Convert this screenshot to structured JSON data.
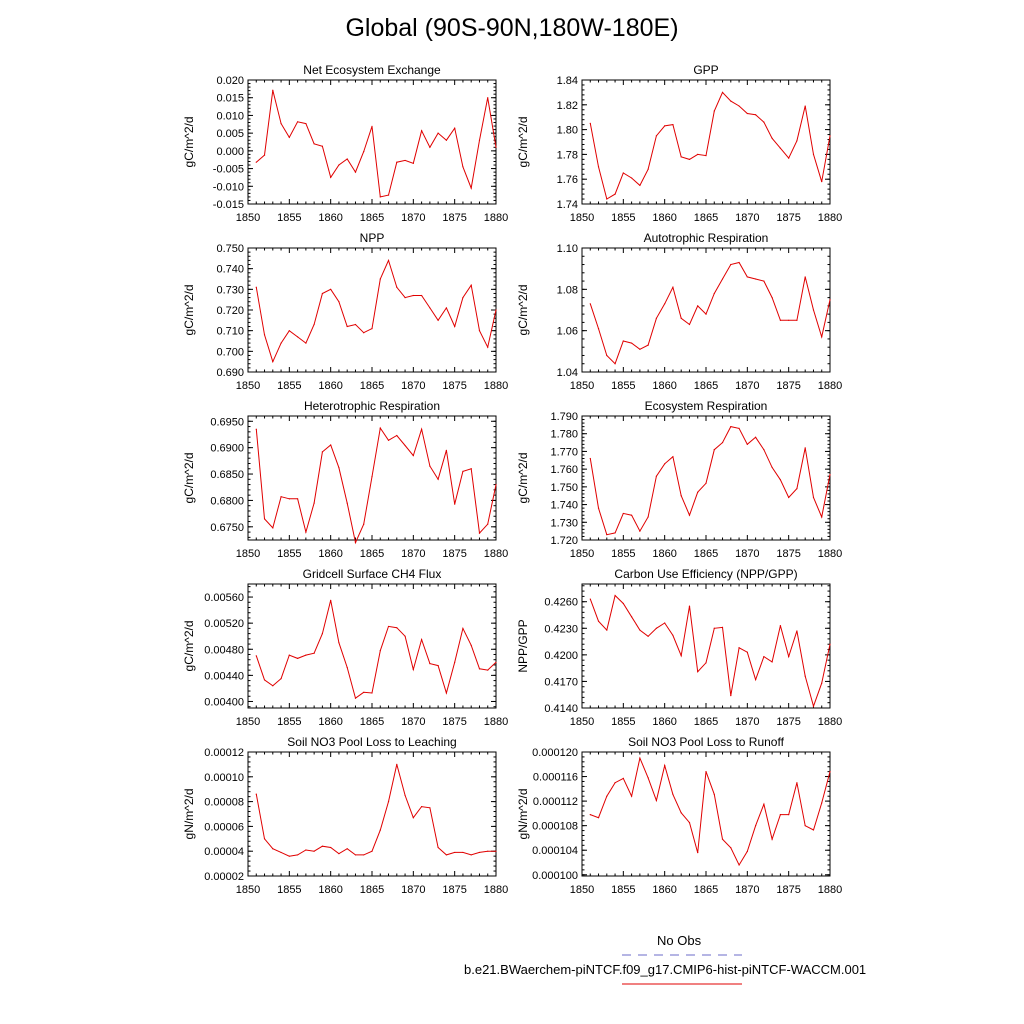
{
  "title": "Global (90S-90N,180W-180E)",
  "legend": {
    "obs_label": "No Obs",
    "case_label": "b.e21.BWaerchem-piNTCF.f09_g17.CMIP6-hist-piNTCF-WACCM.001",
    "obs_color": "#6b6bc9",
    "case_color": "#e00000"
  },
  "chart_data": [
    {
      "type": "line",
      "title": "Net Ecosystem Exchange",
      "ylabel": "gC/m^2/d",
      "xlim": [
        1850,
        1880
      ],
      "ylim": [
        -0.015,
        0.02
      ],
      "xticks": [
        1850,
        1855,
        1860,
        1865,
        1870,
        1875,
        1880
      ],
      "yticks": [
        "-0.015",
        "-0.010",
        "-0.005",
        "0.000",
        "0.005",
        "0.010",
        "0.015",
        "0.020"
      ],
      "line_color": "#e00000",
      "x": [
        1851,
        1852,
        1853,
        1854,
        1855,
        1856,
        1857,
        1858,
        1859,
        1860,
        1861,
        1862,
        1863,
        1864,
        1865,
        1866,
        1867,
        1868,
        1869,
        1870,
        1871,
        1872,
        1873,
        1874,
        1875,
        1876,
        1877,
        1878,
        1879,
        1880
      ],
      "y": [
        -0.0032,
        -0.0012,
        0.0171,
        0.0077,
        0.0038,
        0.0082,
        0.0077,
        0.002,
        0.0013,
        -0.0075,
        -0.004,
        -0.0023,
        -0.006,
        -0.0002,
        0.0069,
        -0.013,
        -0.0125,
        -0.0032,
        -0.0027,
        -0.0035,
        0.0057,
        0.001,
        0.005,
        0.003,
        0.0064,
        -0.0045,
        -0.0105,
        0.003,
        0.015,
        0.001
      ]
    },
    {
      "type": "line",
      "title": "GPP",
      "ylabel": "gC/m^2/d",
      "xlim": [
        1850,
        1880
      ],
      "ylim": [
        1.74,
        1.84
      ],
      "xticks": [
        1850,
        1855,
        1860,
        1865,
        1870,
        1875,
        1880
      ],
      "yticks": [
        "1.74",
        "1.76",
        "1.78",
        "1.80",
        "1.82",
        "1.84"
      ],
      "line_color": "#e00000",
      "x": [
        1851,
        1852,
        1853,
        1854,
        1855,
        1856,
        1857,
        1858,
        1859,
        1860,
        1861,
        1862,
        1863,
        1864,
        1865,
        1866,
        1867,
        1868,
        1869,
        1870,
        1871,
        1872,
        1873,
        1874,
        1875,
        1876,
        1877,
        1878,
        1879,
        1880
      ],
      "y": [
        1.805,
        1.77,
        1.744,
        1.748,
        1.765,
        1.761,
        1.755,
        1.768,
        1.795,
        1.803,
        1.804,
        1.778,
        1.776,
        1.78,
        1.779,
        1.815,
        1.83,
        1.823,
        1.819,
        1.813,
        1.812,
        1.806,
        1.793,
        1.785,
        1.777,
        1.791,
        1.819,
        1.78,
        1.758,
        1.795
      ]
    },
    {
      "type": "line",
      "title": "NPP",
      "ylabel": "gC/m^2/d",
      "xlim": [
        1850,
        1880
      ],
      "ylim": [
        0.69,
        0.75
      ],
      "xticks": [
        1850,
        1855,
        1860,
        1865,
        1870,
        1875,
        1880
      ],
      "yticks": [
        "0.690",
        "0.700",
        "0.710",
        "0.720",
        "0.730",
        "0.740",
        "0.750"
      ],
      "line_color": "#e00000",
      "x": [
        1851,
        1852,
        1853,
        1854,
        1855,
        1856,
        1857,
        1858,
        1859,
        1860,
        1861,
        1862,
        1863,
        1864,
        1865,
        1866,
        1867,
        1868,
        1869,
        1870,
        1871,
        1872,
        1873,
        1874,
        1875,
        1876,
        1877,
        1878,
        1879,
        1880
      ],
      "y": [
        0.731,
        0.708,
        0.695,
        0.704,
        0.71,
        0.707,
        0.704,
        0.713,
        0.728,
        0.73,
        0.724,
        0.712,
        0.713,
        0.709,
        0.711,
        0.735,
        0.744,
        0.731,
        0.726,
        0.727,
        0.727,
        0.721,
        0.715,
        0.721,
        0.712,
        0.726,
        0.732,
        0.71,
        0.702,
        0.72
      ]
    },
    {
      "type": "line",
      "title": "Autotrophic Respiration",
      "ylabel": "gC/m^2/d",
      "xlim": [
        1850,
        1880
      ],
      "ylim": [
        1.04,
        1.1
      ],
      "xticks": [
        1850,
        1855,
        1860,
        1865,
        1870,
        1875,
        1880
      ],
      "yticks": [
        "1.04",
        "1.06",
        "1.08",
        "1.10"
      ],
      "line_color": "#e00000",
      "x": [
        1851,
        1852,
        1853,
        1854,
        1855,
        1856,
        1857,
        1858,
        1859,
        1860,
        1861,
        1862,
        1863,
        1864,
        1865,
        1866,
        1867,
        1868,
        1869,
        1870,
        1871,
        1872,
        1873,
        1874,
        1875,
        1876,
        1877,
        1878,
        1879,
        1880
      ],
      "y": [
        1.073,
        1.061,
        1.048,
        1.044,
        1.055,
        1.054,
        1.051,
        1.053,
        1.066,
        1.073,
        1.081,
        1.066,
        1.063,
        1.072,
        1.068,
        1.078,
        1.085,
        1.092,
        1.093,
        1.086,
        1.085,
        1.084,
        1.076,
        1.065,
        1.065,
        1.065,
        1.086,
        1.07,
        1.057,
        1.075
      ]
    },
    {
      "type": "line",
      "title": "Heterotrophic Respiration",
      "ylabel": "gC/m^2/d",
      "xlim": [
        1850,
        1880
      ],
      "ylim": [
        0.6725,
        0.696
      ],
      "xticks": [
        1850,
        1855,
        1860,
        1865,
        1870,
        1875,
        1880
      ],
      "yticks": [
        "0.6750",
        "0.6800",
        "0.6850",
        "0.6900",
        "0.6950"
      ],
      "line_color": "#e00000",
      "x": [
        1851,
        1852,
        1853,
        1854,
        1855,
        1856,
        1857,
        1858,
        1859,
        1860,
        1861,
        1862,
        1863,
        1864,
        1865,
        1866,
        1867,
        1868,
        1869,
        1870,
        1871,
        1872,
        1873,
        1874,
        1875,
        1876,
        1877,
        1878,
        1879,
        1880
      ],
      "y": [
        0.6935,
        0.6765,
        0.6748,
        0.6807,
        0.6803,
        0.6803,
        0.674,
        0.6795,
        0.6892,
        0.6905,
        0.6862,
        0.6795,
        0.672,
        0.6755,
        0.6845,
        0.6937,
        0.6914,
        0.6923,
        0.6904,
        0.6885,
        0.6935,
        0.6865,
        0.684,
        0.6895,
        0.6793,
        0.6855,
        0.686,
        0.6738,
        0.6755,
        0.683
      ]
    },
    {
      "type": "line",
      "title": "Ecosystem Respiration",
      "ylabel": "gC/m^2/d",
      "xlim": [
        1850,
        1880
      ],
      "ylim": [
        1.72,
        1.79
      ],
      "xticks": [
        1850,
        1855,
        1860,
        1865,
        1870,
        1875,
        1880
      ],
      "yticks": [
        "1.720",
        "1.730",
        "1.740",
        "1.750",
        "1.760",
        "1.770",
        "1.780",
        "1.790"
      ],
      "line_color": "#e00000",
      "x": [
        1851,
        1852,
        1853,
        1854,
        1855,
        1856,
        1857,
        1858,
        1859,
        1860,
        1861,
        1862,
        1863,
        1864,
        1865,
        1866,
        1867,
        1868,
        1869,
        1870,
        1871,
        1872,
        1873,
        1874,
        1875,
        1876,
        1877,
        1878,
        1879,
        1880
      ],
      "y": [
        1.766,
        1.738,
        1.723,
        1.724,
        1.735,
        1.734,
        1.725,
        1.733,
        1.756,
        1.763,
        1.767,
        1.745,
        1.734,
        1.747,
        1.752,
        1.771,
        1.775,
        1.784,
        1.783,
        1.774,
        1.778,
        1.771,
        1.761,
        1.754,
        1.744,
        1.749,
        1.772,
        1.744,
        1.733,
        1.757
      ]
    },
    {
      "type": "line",
      "title": "Gridcell Surface CH4 Flux",
      "ylabel": "gC/m^2/d",
      "xlim": [
        1850,
        1880
      ],
      "ylim": [
        0.0039,
        0.0058
      ],
      "xticks": [
        1850,
        1855,
        1860,
        1865,
        1870,
        1875,
        1880
      ],
      "yticks": [
        "0.00400",
        "0.00440",
        "0.00480",
        "0.00520",
        "0.00560"
      ],
      "line_color": "#e00000",
      "x": [
        1851,
        1852,
        1853,
        1854,
        1855,
        1856,
        1857,
        1858,
        1859,
        1860,
        1861,
        1862,
        1863,
        1864,
        1865,
        1866,
        1867,
        1868,
        1869,
        1870,
        1871,
        1872,
        1873,
        1874,
        1875,
        1876,
        1877,
        1878,
        1879,
        1880
      ],
      "y": [
        0.0047,
        0.00433,
        0.00424,
        0.00435,
        0.00471,
        0.00466,
        0.00471,
        0.00474,
        0.00504,
        0.00555,
        0.0049,
        0.00452,
        0.00405,
        0.00414,
        0.00413,
        0.00478,
        0.00515,
        0.00513,
        0.005,
        0.00449,
        0.00495,
        0.00458,
        0.00455,
        0.00413,
        0.0046,
        0.00512,
        0.00486,
        0.0045,
        0.00448,
        0.0046
      ]
    },
    {
      "type": "line",
      "title": "Carbon Use Efficiency (NPP/GPP)",
      "ylabel": "NPP/GPP",
      "xlim": [
        1850,
        1880
      ],
      "ylim": [
        0.414,
        0.428
      ],
      "xticks": [
        1850,
        1855,
        1860,
        1865,
        1870,
        1875,
        1880
      ],
      "yticks": [
        "0.4140",
        "0.4170",
        "0.4200",
        "0.4230",
        "0.4260"
      ],
      "line_color": "#e00000",
      "x": [
        1851,
        1852,
        1853,
        1854,
        1855,
        1856,
        1857,
        1858,
        1859,
        1860,
        1861,
        1862,
        1863,
        1864,
        1865,
        1866,
        1867,
        1868,
        1869,
        1870,
        1871,
        1872,
        1873,
        1874,
        1875,
        1876,
        1877,
        1878,
        1879,
        1880
      ],
      "y": [
        0.4263,
        0.4238,
        0.4228,
        0.4267,
        0.4258,
        0.4243,
        0.4228,
        0.4221,
        0.423,
        0.4236,
        0.4222,
        0.4199,
        0.4255,
        0.4181,
        0.4191,
        0.423,
        0.4231,
        0.4154,
        0.4208,
        0.4203,
        0.4172,
        0.4198,
        0.4192,
        0.4233,
        0.4198,
        0.4227,
        0.4176,
        0.4142,
        0.4168,
        0.4212
      ]
    },
    {
      "type": "line",
      "title": "Soil NO3 Pool Loss to Leaching",
      "ylabel": "gN/m^2/d",
      "xlim": [
        1850,
        1880
      ],
      "ylim": [
        2e-05,
        0.00012
      ],
      "xticks": [
        1850,
        1855,
        1860,
        1865,
        1870,
        1875,
        1880
      ],
      "yticks": [
        "0.00002",
        "0.00004",
        "0.00006",
        "0.00008",
        "0.00010",
        "0.00012"
      ],
      "line_color": "#e00000",
      "x": [
        1851,
        1852,
        1853,
        1854,
        1855,
        1856,
        1857,
        1858,
        1859,
        1860,
        1861,
        1862,
        1863,
        1864,
        1865,
        1866,
        1867,
        1868,
        1869,
        1870,
        1871,
        1872,
        1873,
        1874,
        1875,
        1876,
        1877,
        1878,
        1879,
        1880
      ],
      "y": [
        8.6e-05,
        5e-05,
        4.2e-05,
        3.9e-05,
        3.6e-05,
        3.7e-05,
        4.1e-05,
        4e-05,
        4.4e-05,
        4.3e-05,
        3.8e-05,
        4.2e-05,
        3.7e-05,
        3.7e-05,
        4e-05,
        5.7e-05,
        8e-05,
        0.00011,
        8.5e-05,
        6.7e-05,
        7.6e-05,
        7.5e-05,
        4.3e-05,
        3.7e-05,
        3.9e-05,
        3.9e-05,
        3.7e-05,
        3.9e-05,
        4e-05,
        4e-05
      ]
    },
    {
      "type": "line",
      "title": "Soil NO3 Pool Loss to Runoff",
      "ylabel": "gN/m^2/d",
      "xlim": [
        1850,
        1880
      ],
      "ylim": [
        9.98e-05,
        0.00012
      ],
      "xticks": [
        1850,
        1855,
        1860,
        1865,
        1870,
        1875,
        1880
      ],
      "yticks": [
        "0.000100",
        "0.000104",
        "0.000108",
        "0.000112",
        "0.000116",
        "0.000120"
      ],
      "line_color": "#e00000",
      "x": [
        1851,
        1852,
        1853,
        1854,
        1855,
        1856,
        1857,
        1858,
        1859,
        1860,
        1861,
        1862,
        1863,
        1864,
        1865,
        1866,
        1867,
        1868,
        1869,
        1870,
        1871,
        1872,
        1873,
        1874,
        1875,
        1876,
        1877,
        1878,
        1879,
        1880
      ],
      "y": [
        0.0001098,
        0.0001093,
        0.0001128,
        0.000115,
        0.0001157,
        0.0001128,
        0.000119,
        0.0001158,
        0.0001121,
        0.0001178,
        0.0001131,
        0.0001101,
        0.0001085,
        0.0001036,
        0.0001168,
        0.0001131,
        0.0001058,
        0.0001044,
        0.0001016,
        0.0001038,
        0.000108,
        0.0001115,
        0.0001058,
        0.0001098,
        0.0001098,
        0.000115,
        0.000108,
        0.0001073,
        0.0001117,
        0.0001168
      ]
    }
  ]
}
